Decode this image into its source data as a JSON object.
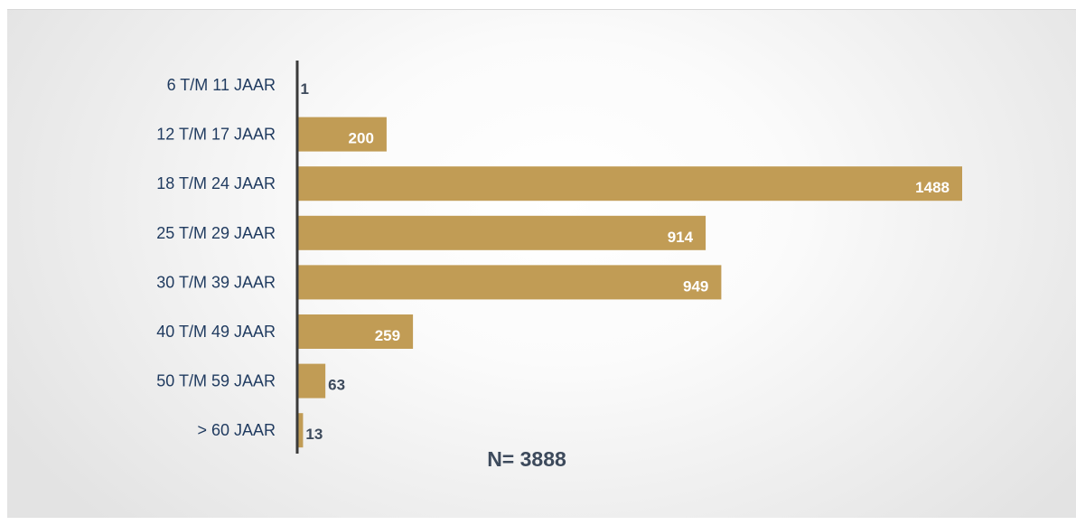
{
  "chart_data": {
    "type": "bar",
    "orientation": "horizontal",
    "categories": [
      "6 T/M 11 JAAR",
      "12 T/M 17 JAAR",
      "18 T/M 24 JAAR",
      "25 T/M 29 JAAR",
      "30 T/M 39 JAAR",
      "40 T/M 49 JAAR",
      "50 T/M 59 JAAR",
      "> 60 JAAR"
    ],
    "values": [
      1,
      200,
      1488,
      914,
      949,
      259,
      63,
      13
    ],
    "data_labels": [
      "1",
      "200",
      "1488",
      "914",
      "949",
      "259",
      "63",
      "13"
    ],
    "annotation": "N= 3888",
    "xlim": [
      0,
      1500
    ],
    "grid": false,
    "legend": "none",
    "colors": {
      "bar": "#c19c55",
      "category_text": "#1f3a5f",
      "label_inside": "#ffffff",
      "label_outside": "#3d4a5c",
      "axis": "#3a3a3a"
    }
  }
}
